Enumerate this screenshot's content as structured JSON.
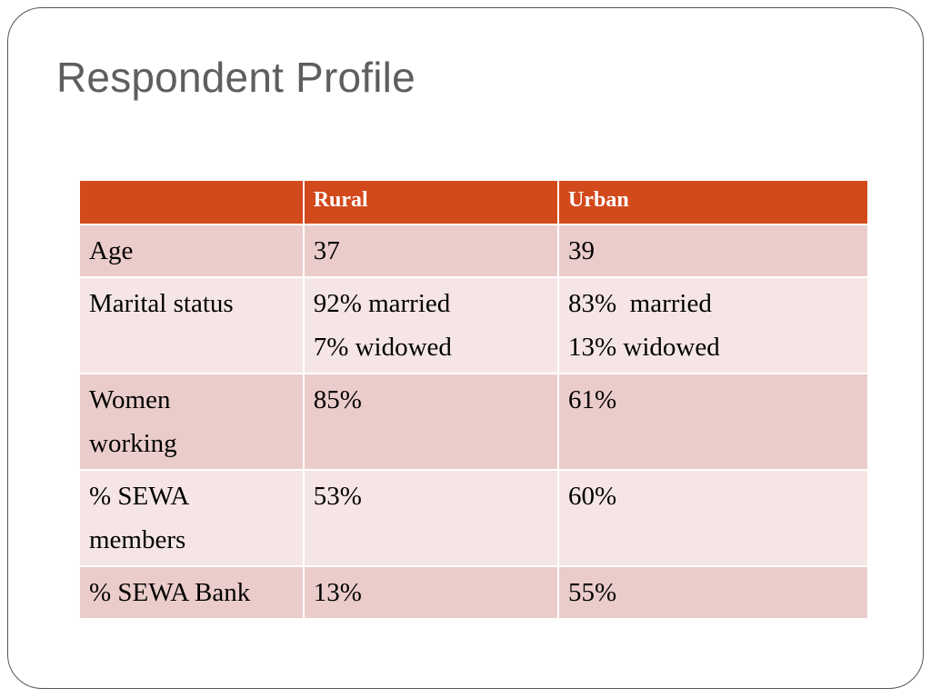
{
  "slide": {
    "title": "Respondent Profile"
  },
  "table": {
    "headers": [
      "",
      "Rural",
      "Urban"
    ],
    "rows": [
      {
        "label": [
          "Age"
        ],
        "rural": [
          "37"
        ],
        "urban": [
          "39"
        ]
      },
      {
        "label": [
          "Marital status"
        ],
        "rural": [
          "92% married",
          "7% widowed"
        ],
        "urban": [
          "83%  married",
          "13% widowed"
        ]
      },
      {
        "label": [
          "Women",
          "working"
        ],
        "rural": [
          "85%"
        ],
        "urban": [
          "61%"
        ]
      },
      {
        "label": [
          "% SEWA",
          "members"
        ],
        "rural": [
          "53%"
        ],
        "urban": [
          "60%"
        ]
      },
      {
        "label": [
          "% SEWA Bank"
        ],
        "rural": [
          "13%"
        ],
        "urban": [
          "55%"
        ]
      }
    ]
  },
  "colors": {
    "header_fill": "#d2491c",
    "row_dark": "#eacdcb",
    "row_light": "#f5e6e5",
    "title_text": "#5e5e5e"
  }
}
